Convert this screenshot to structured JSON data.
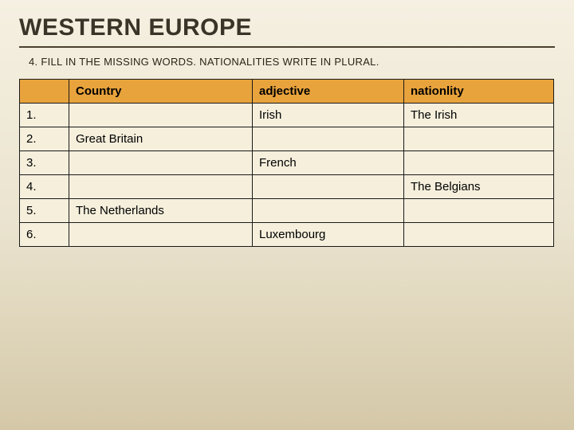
{
  "title": "WESTERN EUROPE",
  "instruction": "4. FILL IN THE MISSING WORDS. NATIONALITIES WRITE IN PLURAL.",
  "table": {
    "columns": [
      "",
      "Country",
      "adjective",
      "nationlity"
    ],
    "rows": [
      {
        "num": "1.",
        "country": "",
        "adjective": "Irish",
        "nationality": "The Irish"
      },
      {
        "num": "2.",
        "country": "Great Britain",
        "adjective": "",
        "nationality": ""
      },
      {
        "num": "3.",
        "country": "",
        "adjective": "French",
        "nationality": ""
      },
      {
        "num": "4.",
        "country": "",
        "adjective": "",
        "nationality": "The Belgians"
      },
      {
        "num": "5.",
        "country": "The Netherlands",
        "adjective": "",
        "nationality": ""
      },
      {
        "num": "6.",
        "country": "",
        "adjective": "Luxembourg",
        "nationality": ""
      }
    ],
    "header_bg": "#e8a33c",
    "cell_bg": "#f5efdc",
    "border_color": "#1a1a1a",
    "font_size": 15
  },
  "colors": {
    "bg_top": "#f5f0e1",
    "bg_mid": "#ebe4d0",
    "bg_bottom": "#d4c8a8",
    "title_color": "#3a3428",
    "rule_color": "#4a4030"
  }
}
